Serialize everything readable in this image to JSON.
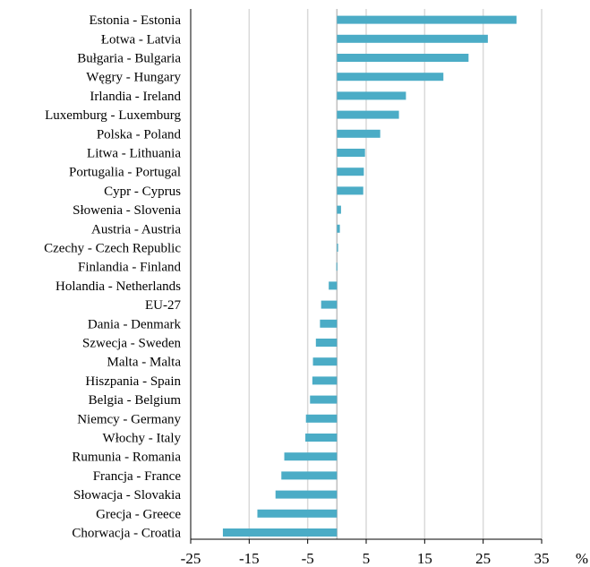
{
  "chart_data": {
    "type": "bar",
    "orientation": "horizontal",
    "title": "",
    "xlabel": "",
    "ylabel": "",
    "unit": "%",
    "categories": [
      "Estonia - Estonia",
      "Łotwa - Latvia",
      "Bułgaria - Bulgaria",
      "Węgry - Hungary",
      "Irlandia - Ireland",
      "Luxemburg - Luxemburg",
      "Polska - Poland",
      "Litwa - Lithuania",
      "Portugalia - Portugal",
      "Cypr - Cyprus",
      "Słowenia - Slovenia",
      "Austria - Austria",
      "Czechy - Czech Republic",
      "Finlandia - Finland",
      "Holandia - Netherlands",
      "EU-27",
      "Dania - Denmark",
      "Szwecja - Sweden",
      "Malta - Malta",
      "Hiszpania - Spain",
      "Belgia - Belgium",
      "Niemcy - Germany",
      "Włochy - Italy",
      "Rumunia - Romania",
      "Francja - France",
      "Słowacja - Slovakia",
      "Grecja - Greece",
      "Chorwacja - Croatia"
    ],
    "values": [
      30.7,
      25.8,
      22.5,
      18.2,
      11.8,
      10.6,
      7.4,
      4.8,
      4.6,
      4.5,
      0.7,
      0.5,
      0.2,
      -0.1,
      -1.4,
      -2.7,
      -2.9,
      -3.6,
      -4.1,
      -4.2,
      -4.6,
      -5.3,
      -5.4,
      -9.0,
      -9.5,
      -10.5,
      -13.6,
      -19.5
    ],
    "xlim": [
      -25,
      35
    ],
    "xticks": [
      -25,
      -15,
      -5,
      5,
      15,
      25,
      35
    ],
    "grid": true,
    "colors": {
      "bar": "#4bacc6",
      "grid": "#d9d9d9",
      "axis": "#000000",
      "zero_line": "#bfbfbf"
    }
  }
}
